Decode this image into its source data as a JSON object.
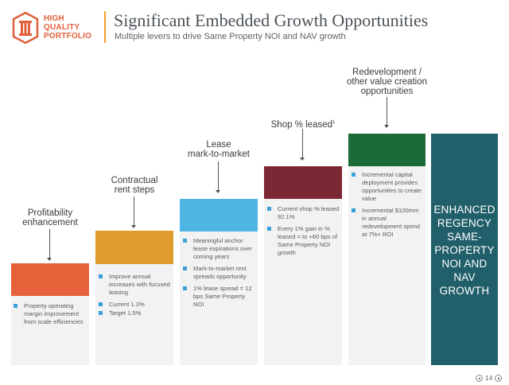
{
  "logo": {
    "line1": "HIGH",
    "line2": "QUALITY",
    "line3": "PORTFOLIO",
    "color": "#e0603a"
  },
  "header": {
    "title": "Significant Embedded Growth Opportunities",
    "subtitle": "Multiple levers to drive Same Property NOI and NAV growth"
  },
  "columns": [
    {
      "label_lines": [
        "Profitability",
        "enhancement"
      ],
      "color": "#e4613a",
      "bullets": [
        "Property operating margin improvement from scale efficiencies"
      ]
    },
    {
      "label_lines": [
        "Contractual",
        "rent steps"
      ],
      "color": "#e09c2d",
      "bullets": [
        "Improve annual increases with focused leasing",
        "Current 1.3%",
        "Target 1.5%"
      ]
    },
    {
      "label_lines": [
        "Lease",
        "mark-to-market"
      ],
      "color": "#4fb5e5",
      "bullets": [
        "Meaningful anchor lease expirations over coming years",
        "Mark-to-market rent spreads opportunity",
        "1% lease spread = 12 bps Same Property NOI"
      ]
    },
    {
      "label_lines": [
        "Shop % leased"
      ],
      "label_sup": "1",
      "color": "#7c2834",
      "bullets": [
        "Current shop % leased 92.1%",
        "Every 1% gain in % leased = to +60 bps of Same Property NOI growth"
      ]
    },
    {
      "label_lines": [
        "Redevelopment /",
        "other value creation",
        "opportunities"
      ],
      "color": "#1c6a3a",
      "bullets": [
        "Incremental capital deployment provides opportunities to create value",
        "Incremental $100mm in annual redevelopment spend at 7%+ ROI"
      ]
    }
  ],
  "final_box": {
    "lines": [
      "ENHANCED",
      "REGENCY",
      "SAME-",
      "PROPERTY",
      "NOI AND",
      "NAV",
      "GROWTH"
    ],
    "color": "#215f6b"
  },
  "page": {
    "number": "14"
  }
}
